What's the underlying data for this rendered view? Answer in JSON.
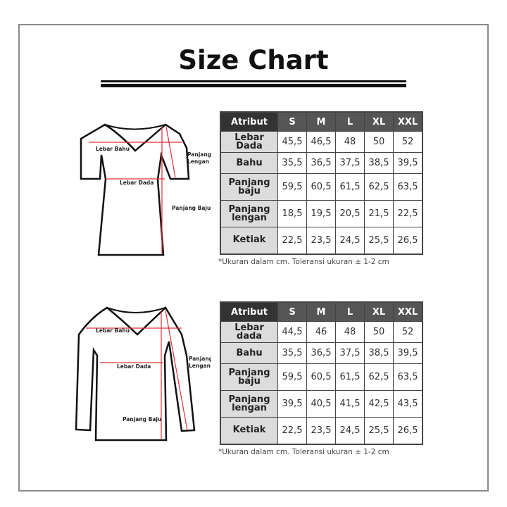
{
  "title": "Size Chart",
  "charts": [
    {
      "headers": [
        "Atribut",
        "S",
        "M",
        "L",
        "XL",
        "XXL"
      ],
      "rows": [
        {
          "label": "Lebar Dada",
          "values": [
            "45,5",
            "46,5",
            "48",
            "50",
            "52"
          ]
        },
        {
          "label": "Bahu",
          "values": [
            "35,5",
            "36,5",
            "37,5",
            "38,5",
            "39,5"
          ]
        },
        {
          "label": "Panjang baju",
          "values": [
            "59,5",
            "60,5",
            "61,5",
            "62,5",
            "63,5"
          ]
        },
        {
          "label": "Panjang lengan",
          "values": [
            "18,5",
            "19,5",
            "20,5",
            "21,5",
            "22,5"
          ]
        },
        {
          "label": "Ketiak",
          "values": [
            "22,5",
            "23,5",
            "24,5",
            "25,5",
            "26,5"
          ]
        }
      ],
      "note": "*Ukuran dalam cm. Toleransi ukuran ± 1-2 cm",
      "diagram": {
        "lebar_bahu": "Lebar Bahu",
        "lebar_dada": "Lebar Dada",
        "panjang": "Panjang",
        "lengan": "Lengan",
        "panjang_baju": "Panjang Baju"
      }
    },
    {
      "headers": [
        "Atribut",
        "S",
        "M",
        "L",
        "XL",
        "XXL"
      ],
      "rows": [
        {
          "label": "Lebar dada",
          "values": [
            "44,5",
            "46",
            "48",
            "50",
            "52"
          ]
        },
        {
          "label": "Bahu",
          "values": [
            "35,5",
            "36,5",
            "37,5",
            "38,5",
            "39,5"
          ]
        },
        {
          "label": "Panjang baju",
          "values": [
            "59,5",
            "60,5",
            "61,5",
            "62,5",
            "63,5"
          ]
        },
        {
          "label": "Panjang lengan",
          "values": [
            "39,5",
            "40,5",
            "41,5",
            "42,5",
            "43,5"
          ]
        },
        {
          "label": "Ketiak",
          "values": [
            "22,5",
            "23,5",
            "24,5",
            "25,5",
            "26,5"
          ]
        }
      ],
      "note": "*Ukuran dalam cm. Toleransi ukuran ± 1-2 cm",
      "diagram": {
        "lebar_bahu": "Lebar Bahu",
        "lebar_dada": "Lebar Dada",
        "panjang": "Panjang",
        "lengan": "Lengan",
        "panjang_baju": "Panjang Baju"
      }
    }
  ],
  "colors": {
    "header_attr": "#333333",
    "header_size": "#555555",
    "label_bg": "#dcdcdc",
    "measure_line": "#e0303a"
  }
}
